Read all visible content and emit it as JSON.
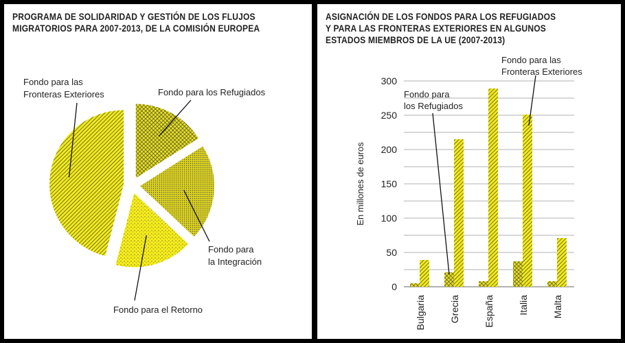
{
  "chart_data": [
    {
      "type": "pie",
      "title": "PROGRAMA DE SOLIDARIDAD Y GESTIÓN DE LOS FLUJOS\nMIGRATORIOS PARA 2007-2013, DE LA COMISIÓN EUROPEA",
      "slices": [
        {
          "label": "Fondo para los Refugiados",
          "lines": [
            "Fondo para los Refugiados"
          ],
          "value": 16,
          "pattern": "crosshatch"
        },
        {
          "label": "Fondo para la Integración",
          "lines": [
            "Fondo para",
            "la Integración"
          ],
          "value": 21,
          "pattern": "fine-dots"
        },
        {
          "label": "Fondo para el Retorno",
          "lines": [
            "Fondo para el Retorno"
          ],
          "value": 17,
          "pattern": "stipple"
        },
        {
          "label": "Fondo para las Fronteras Exteriores",
          "lines": [
            "Fondo para las",
            "Fronteras Exteriores"
          ],
          "value": 46,
          "pattern": "diagonal-lines"
        }
      ]
    },
    {
      "type": "bar",
      "title": "ASIGNACIÓN DE LOS FONDOS PARA LOS REFUGIADOS\nY PARA LAS FRONTERAS EXTERIORES EN ALGUNOS\nESTADOS MIEMBROS DE LA UE (2007-2013)",
      "ylabel": "En millones de euros",
      "ylim": [
        0,
        300
      ],
      "yticks": [
        0,
        50,
        100,
        150,
        200,
        250,
        300
      ],
      "grid": true,
      "categories": [
        "Bulgaria",
        "Grecia",
        "España",
        "Italia",
        "Malta"
      ],
      "series": [
        {
          "name": "Fondo para los Refugiados",
          "lines": [
            "Fondo para",
            "los Refugiados"
          ],
          "values": [
            5,
            21,
            8,
            37,
            8
          ],
          "pattern": "crosshatch"
        },
        {
          "name": "Fondo para las Fronteras Exteriores",
          "lines": [
            "Fondo para las",
            "Fronteras Exteriores"
          ],
          "values": [
            39,
            215,
            289,
            251,
            71
          ],
          "pattern": "diagonal-lines"
        }
      ]
    }
  ],
  "colors": {
    "fill": "#f2ea1a",
    "ink": "#222222",
    "grid": "#b0b0b0"
  }
}
